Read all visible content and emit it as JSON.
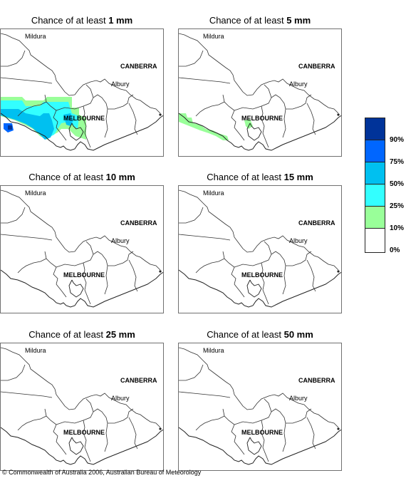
{
  "panels": [
    {
      "prefix": "Chance of at least ",
      "amount": "1 mm",
      "shading": "1mm"
    },
    {
      "prefix": "Chance of at least ",
      "amount": "5 mm",
      "shading": "5mm"
    },
    {
      "prefix": "Chance of at least ",
      "amount": "10 mm",
      "shading": "none"
    },
    {
      "prefix": "Chance of at least ",
      "amount": "15 mm",
      "shading": "none"
    },
    {
      "prefix": "Chance of at least ",
      "amount": "25 mm",
      "shading": "none"
    },
    {
      "prefix": "Chance of at least ",
      "amount": "50 mm",
      "shading": "none"
    }
  ],
  "places": {
    "mildura": "Mildura",
    "canberra": "CANBERRA",
    "albury": "Albury",
    "melbourne": "MELBOURNE"
  },
  "legend": {
    "labels": [
      "90%",
      "75%",
      "50%",
      "25%",
      "10%",
      "0%"
    ],
    "colors": [
      "#003399",
      "#0066ff",
      "#00c0f0",
      "#33ffff",
      "#99ff99",
      "#ffffff"
    ]
  },
  "copyright": "© Commonwealth of Australia 2006, Australian Bureau of Meteorology"
}
